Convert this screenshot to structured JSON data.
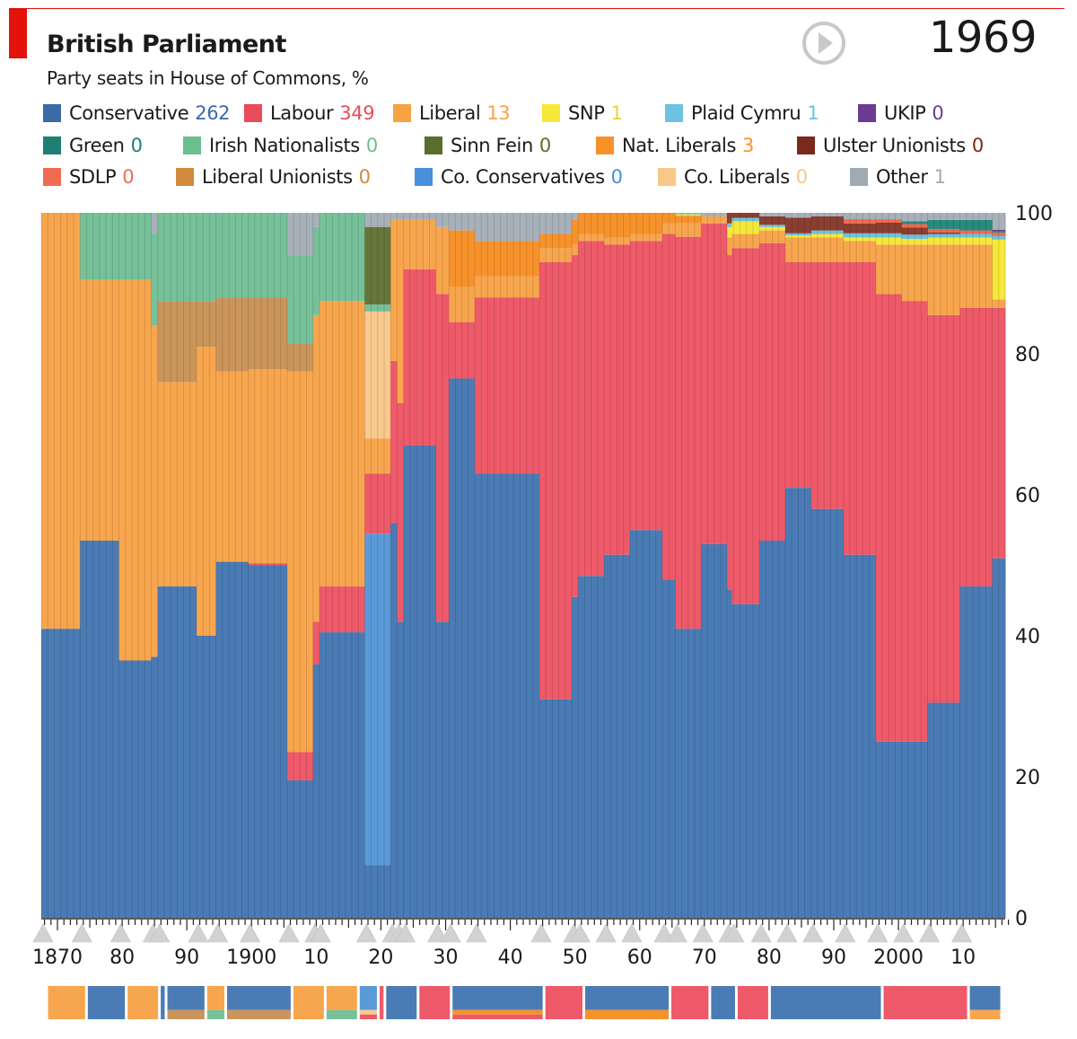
{
  "header": {
    "title": "British Parliament",
    "subtitle": "Party seats in House of Commons, %",
    "year": "1969",
    "play_icon": "play-icon"
  },
  "legend": [
    {
      "name": "Conservative",
      "value": "262",
      "color": "#3a6aa8",
      "text_color": "#3a6aa8"
    },
    {
      "name": "Labour",
      "value": "349",
      "color": "#e84c5a",
      "text_color": "#e84c5a"
    },
    {
      "name": "Liberal",
      "value": "13",
      "color": "#f7a343",
      "text_color": "#f7a343"
    },
    {
      "name": "SNP",
      "value": "1",
      "color": "#f5e83a",
      "text_color": "#e8d42a"
    },
    {
      "name": "Plaid Cymru",
      "value": "1",
      "color": "#6cc2e0",
      "text_color": "#6cc2e0"
    },
    {
      "name": "UKIP",
      "value": "0",
      "color": "#6b3b91",
      "text_color": "#6b3b91"
    },
    {
      "name": "Green",
      "value": "0",
      "color": "#1e7f74",
      "text_color": "#1e7f74"
    },
    {
      "name": "Irish Nationalists",
      "value": "0",
      "color": "#6abf8e",
      "text_color": "#6abf8e"
    },
    {
      "name": "Sinn Fein",
      "value": "0",
      "color": "#5a6e2e",
      "text_color": "#5a6e2e"
    },
    {
      "name": "Nat. Liberals",
      "value": "3",
      "color": "#f7922b",
      "text_color": "#f7922b"
    },
    {
      "name": "Ulster Unionists",
      "value": "0",
      "color": "#7a2a1a",
      "text_color": "#7a2a1a"
    },
    {
      "name": "SDLP",
      "value": "0",
      "color": "#f06b50",
      "text_color": "#f06b50"
    },
    {
      "name": "Liberal Unionists",
      "value": "0",
      "color": "#d08c3c",
      "text_color": "#d08c3c"
    },
    {
      "name": "Co. Conservatives",
      "value": "0",
      "color": "#4a8fdc",
      "text_color": "#4a8fdc"
    },
    {
      "name": "Co. Liberals",
      "value": "0",
      "color": "#f8c888",
      "text_color": "#f8c888"
    },
    {
      "name": "Other",
      "value": "1",
      "color": "#a0aab3",
      "text_color": "#a0aab3"
    }
  ],
  "chart_data": {
    "type": "stacked-bar",
    "title": "British Parliament",
    "subtitle": "Party seats in House of Commons, %",
    "ylabel": "%",
    "ylim": [
      0,
      100
    ],
    "yticks": [
      "0",
      "20",
      "40",
      "60",
      "80",
      "100"
    ],
    "xticks": [
      "1870",
      "80",
      "90",
      "1900",
      "10",
      "20",
      "30",
      "40",
      "50",
      "60",
      "70",
      "80",
      "90",
      "2000",
      "10"
    ],
    "xrange": [
      1868,
      2017
    ],
    "stack_order": [
      "Conservative",
      "Co. Conservatives",
      "Labour",
      "Liberal",
      "Co. Liberals",
      "Nat. Liberals",
      "Liberal Unionists",
      "Irish Nationalists",
      "Sinn Fein",
      "SNP",
      "Plaid Cymru",
      "Ulster Unionists",
      "SDLP",
      "Green",
      "UKIP",
      "Other"
    ],
    "colors": {
      "Conservative": "#4a7bb5",
      "Co. Conservatives": "#5b9ad8",
      "Labour": "#ee5a69",
      "Liberal": "#f8a64e",
      "Co. Liberals": "#f9c98e",
      "Nat. Liberals": "#f7922b",
      "Liberal Unionists": "#c9955a",
      "Irish Nationalists": "#76c19a",
      "Sinn Fein": "#66763a",
      "SNP": "#f5e83a",
      "Plaid Cymru": "#6cc2e0",
      "Ulster Unionists": "#8a3e30",
      "SDLP": "#f06b50",
      "Green": "#2a8a7f",
      "UKIP": "#6b3b91",
      "Other": "#a8b1ba"
    },
    "periods": [
      {
        "from": 1868,
        "to": 1874,
        "Conservative": 41,
        "Liberal": 59
      },
      {
        "from": 1874,
        "to": 1880,
        "Conservative": 53.5,
        "Liberal": 37,
        "Irish Nationalists": 9.5
      },
      {
        "from": 1880,
        "to": 1885,
        "Conservative": 36.5,
        "Liberal": 54,
        "Irish Nationalists": 9.5
      },
      {
        "from": 1885,
        "to": 1886,
        "Conservative": 37,
        "Liberal": 47,
        "Irish Nationalists": 13,
        "Other": 3
      },
      {
        "from": 1886,
        "to": 1892,
        "Conservative": 47,
        "Liberal": 29,
        "Liberal Unionists": 11.5,
        "Irish Nationalists": 12.5
      },
      {
        "from": 1892,
        "to": 1895,
        "Conservative": 40,
        "Liberal": 41,
        "Liberal Unionists": 6.5,
        "Irish Nationalists": 12.5
      },
      {
        "from": 1895,
        "to": 1900,
        "Conservative": 50.5,
        "Liberal": 27,
        "Liberal Unionists": 10.5,
        "Irish Nationalists": 12
      },
      {
        "from": 1900,
        "to": 1906,
        "Conservative": 50,
        "Liberal": 27.5,
        "Labour": 0.3,
        "Liberal Unionists": 10.2,
        "Irish Nationalists": 12
      },
      {
        "from": 1906,
        "to": 1910,
        "Conservative": 19.5,
        "Liberal": 54,
        "Labour": 4,
        "Liberal Unionists": 4,
        "Irish Nationalists": 12.5,
        "Other": 6
      },
      {
        "from": 1910,
        "to": 1911,
        "Conservative": 36,
        "Liberal": 43.5,
        "Labour": 6,
        "Irish Nationalists": 12.5,
        "Other": 2
      },
      {
        "from": 1911,
        "to": 1918,
        "Conservative": 40.5,
        "Liberal": 40.5,
        "Labour": 6.5,
        "Irish Nationalists": 12.5
      },
      {
        "from": 1918,
        "to": 1922,
        "Conservative": 7.5,
        "Liberal": 5,
        "Labour": 8.5,
        "Co. Conservatives": 47,
        "Co. Liberals": 18,
        "Sinn Fein": 11,
        "Irish Nationalists": 1,
        "Other": 2
      },
      {
        "from": 1922,
        "to": 1923,
        "Conservative": 56,
        "Liberal": 20,
        "Labour": 23,
        "Other": 1
      },
      {
        "from": 1923,
        "to": 1924,
        "Conservative": 42,
        "Liberal": 26,
        "Labour": 31,
        "Other": 1
      },
      {
        "from": 1924,
        "to": 1929,
        "Conservative": 67,
        "Liberal": 7,
        "Labour": 25,
        "Other": 1
      },
      {
        "from": 1929,
        "to": 1931,
        "Conservative": 42,
        "Liberal": 9.5,
        "Labour": 46.5,
        "Other": 2
      },
      {
        "from": 1931,
        "to": 1935,
        "Conservative": 76.5,
        "Liberal": 5,
        "Nat. Liberals": 8,
        "Labour": 8,
        "Other": 2.5
      },
      {
        "from": 1935,
        "to": 1945,
        "Conservative": 63,
        "Liberal": 3,
        "Nat. Liberals": 5,
        "Labour": 25,
        "Other": 4
      },
      {
        "from": 1945,
        "to": 1950,
        "Conservative": 31,
        "Nat. Liberals": 2,
        "Liberal": 2,
        "Labour": 62,
        "Other": 3
      },
      {
        "from": 1950,
        "to": 1951,
        "Conservative": 45.5,
        "Nat. Liberals": 3.5,
        "Liberal": 1.5,
        "Labour": 48.5,
        "Other": 1
      },
      {
        "from": 1951,
        "to": 1955,
        "Conservative": 48.5,
        "Nat. Liberals": 3,
        "Liberal": 1,
        "Labour": 47.5
      },
      {
        "from": 1955,
        "to": 1959,
        "Conservative": 51.5,
        "Nat. Liberals": 3.5,
        "Liberal": 1,
        "Labour": 44
      },
      {
        "from": 1959,
        "to": 1964,
        "Conservative": 55,
        "Nat. Liberals": 3,
        "Liberal": 1,
        "Labour": 41
      },
      {
        "from": 1964,
        "to": 1966,
        "Conservative": 48,
        "Nat. Liberals": 1.5,
        "Liberal": 1.5,
        "Labour": 49
      },
      {
        "from": 1966,
        "to": 1970,
        "Conservative": 41,
        "Nat. Liberals": 1,
        "Liberal": 2,
        "SNP": 0.2,
        "Plaid Cymru": 0.2,
        "Labour": 55.6
      },
      {
        "from": 1970,
        "to": 1974,
        "Conservative": 53,
        "Liberal": 1,
        "Labour": 45.5,
        "Other": 0.5
      },
      {
        "from": 1974,
        "to": 1974.75,
        "Conservative": 46.5,
        "Liberal": 2.5,
        "Labour": 47.5,
        "SNP": 1.5,
        "Plaid Cymru": 0.5,
        "Ulster Unionists": 1.5
      },
      {
        "from": 1974.75,
        "to": 1979,
        "Conservative": 44.5,
        "Liberal": 2,
        "Labour": 50.5,
        "SNP": 1.8,
        "Plaid Cymru": 0.5,
        "Ulster Unionists": 0.7
      },
      {
        "from": 1979,
        "to": 1983,
        "Conservative": 53.5,
        "Liberal": 1.8,
        "Labour": 42.2,
        "SNP": 0.5,
        "Plaid Cymru": 0.3,
        "Ulster Unionists": 1.2,
        "Other": 0.5
      },
      {
        "from": 1983,
        "to": 1987,
        "Conservative": 61,
        "Liberal": 3.5,
        "Labour": 32,
        "SNP": 0.3,
        "Plaid Cymru": 0.3,
        "Ulster Unionists": 2.2,
        "Other": 0.7
      },
      {
        "from": 1987,
        "to": 1992,
        "Conservative": 58,
        "Liberal": 3.5,
        "Labour": 35,
        "SNP": 0.5,
        "Plaid Cymru": 0.5,
        "Ulster Unionists": 2,
        "Other": 0.5
      },
      {
        "from": 1992,
        "to": 1997,
        "Conservative": 51.5,
        "Liberal": 3,
        "Labour": 41.5,
        "SNP": 0.5,
        "Plaid Cymru": 0.6,
        "Ulster Unionists": 1.4,
        "SDLP": 0.6,
        "Green": 0,
        "Other": 0.9
      },
      {
        "from": 1997,
        "to": 2001,
        "Conservative": 25,
        "Liberal": 7,
        "Labour": 63.5,
        "SNP": 1,
        "Plaid Cymru": 0.6,
        "Ulster Unionists": 1.5,
        "SDLP": 0.5,
        "Other": 0.9
      },
      {
        "from": 2001,
        "to": 2005,
        "Conservative": 25,
        "Liberal": 8,
        "Labour": 62.5,
        "SNP": 0.8,
        "Plaid Cymru": 0.6,
        "Ulster Unionists": 1,
        "SDLP": 0.5,
        "Green": 0.4,
        "Other": 1.2
      },
      {
        "from": 2005,
        "to": 2010,
        "Conservative": 30.5,
        "Liberal": 10,
        "Labour": 55,
        "SNP": 1,
        "Plaid Cymru": 0.5,
        "Ulster Unionists": 0.2,
        "SDLP": 0.5,
        "Green": 1.3,
        "Other": 1
      },
      {
        "from": 2010,
        "to": 2015,
        "Conservative": 47,
        "Liberal": 9,
        "Labour": 39.5,
        "SNP": 1,
        "Plaid Cymru": 0.5,
        "SDLP": 0.5,
        "Green": 1.5,
        "Other": 1
      },
      {
        "from": 2015,
        "to": 2017,
        "Conservative": 51,
        "Liberal": 1.2,
        "Labour": 35.5,
        "SNP": 8.5,
        "Plaid Cymru": 0.5,
        "SDLP": 0.5,
        "Green": 0.2,
        "UKIP": 0.2,
        "Other": 2.4
      }
    ],
    "election_markers": [
      1868,
      1874,
      1880,
      1885,
      1886,
      1892,
      1895,
      1900,
      1906,
      1910,
      1910.9,
      1918,
      1922,
      1923,
      1924,
      1929,
      1931,
      1935,
      1945,
      1950,
      1951,
      1955,
      1959,
      1964,
      1966,
      1970,
      1974,
      1974.8,
      1979,
      1983,
      1987,
      1992,
      1997,
      2001,
      2005,
      2010
    ],
    "government_strip": [
      {
        "from": 1868,
        "to": 1874,
        "parties": [
          "Liberal"
        ]
      },
      {
        "from": 1874,
        "to": 1880,
        "parties": [
          "Conservative"
        ]
      },
      {
        "from": 1880,
        "to": 1885,
        "parties": [
          "Liberal"
        ]
      },
      {
        "from": 1885,
        "to": 1886,
        "parties": [
          "Conservative"
        ]
      },
      {
        "from": 1886,
        "to": 1892,
        "parties": [
          "Conservative",
          "Liberal Unionists"
        ]
      },
      {
        "from": 1892,
        "to": 1895,
        "parties": [
          "Liberal",
          "Irish Nationalists"
        ]
      },
      {
        "from": 1895,
        "to": 1905,
        "parties": [
          "Conservative",
          "Liberal Unionists"
        ]
      },
      {
        "from": 1905,
        "to": 1910,
        "parties": [
          "Liberal"
        ]
      },
      {
        "from": 1910,
        "to": 1915,
        "parties": [
          "Liberal",
          "Irish Nationalists"
        ]
      },
      {
        "from": 1915,
        "to": 1918,
        "parties": [
          "Co. Conservatives",
          "Co. Liberals",
          "Labour"
        ]
      },
      {
        "from": 1918,
        "to": 1919,
        "parties": [
          "Labour"
        ]
      },
      {
        "from": 1919,
        "to": 1924,
        "parties": [
          "Conservative"
        ]
      },
      {
        "from": 1924,
        "to": 1929,
        "parties": [
          "Labour"
        ]
      },
      {
        "from": 1929,
        "to": 1943,
        "parties": [
          "Conservative",
          "Nat. Liberals",
          "Labour"
        ]
      },
      {
        "from": 1943,
        "to": 1949,
        "parties": [
          "Labour"
        ]
      },
      {
        "from": 1949,
        "to": 1962,
        "parties": [
          "Conservative",
          "Nat. Liberals"
        ]
      },
      {
        "from": 1962,
        "to": 1968,
        "parties": [
          "Labour"
        ]
      },
      {
        "from": 1968,
        "to": 1972,
        "parties": [
          "Conservative"
        ]
      },
      {
        "from": 1972,
        "to": 1977,
        "parties": [
          "Labour"
        ]
      },
      {
        "from": 1977,
        "to": 1994,
        "parties": [
          "Conservative"
        ]
      },
      {
        "from": 1994,
        "to": 2007,
        "parties": [
          "Labour"
        ]
      },
      {
        "from": 2007,
        "to": 2012,
        "parties": [
          "Conservative",
          "Liberal"
        ]
      }
    ]
  }
}
